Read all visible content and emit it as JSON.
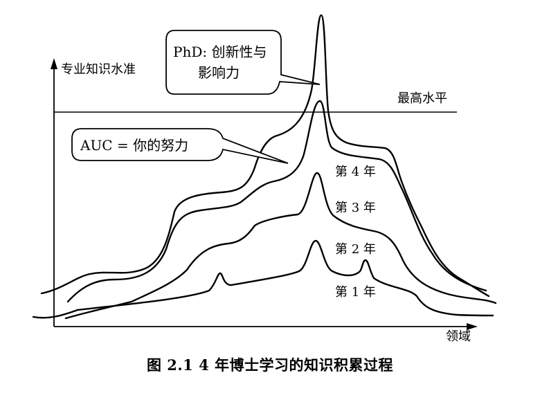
{
  "diagram": {
    "y_axis_label": "专业知识水准",
    "x_axis_label": "领域",
    "max_level_label": "最高水平",
    "phd_callout_line1": "PhD: 创新性与",
    "phd_callout_line2": "影响力",
    "auc_callout": "AUC = 你的努力",
    "year_labels": [
      "第 4 年",
      "第 3 年",
      "第 2 年",
      "第 1 年"
    ]
  },
  "caption": "图 2.1    4 年博士学习的知识积累过程"
}
